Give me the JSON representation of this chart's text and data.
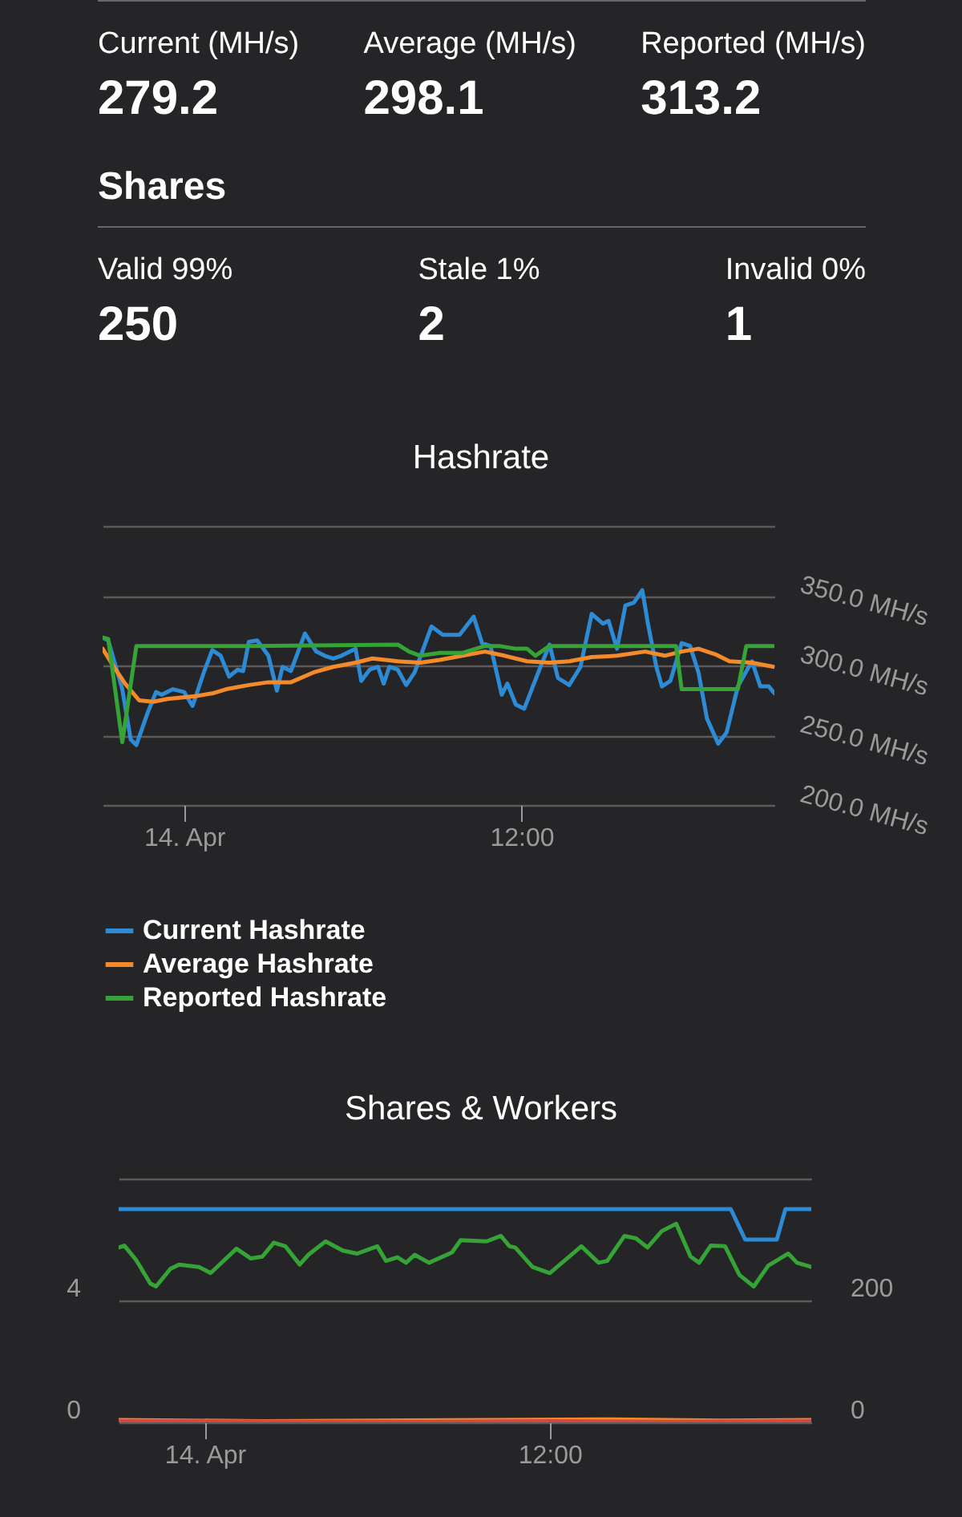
{
  "chart_data": [
    {
      "type": "other",
      "annotations": [
        "Current (MH/s)",
        "279.2",
        "Average (MH/s)",
        "298.1",
        "Reported (MH/s)",
        "313.2",
        "Shares",
        "Valid 99%",
        "250",
        "Stale 1%",
        "2",
        "Invalid 0%",
        "1"
      ]
    },
    {
      "type": "line",
      "title": "Hashrate",
      "xlim": [
        "--04-13T21:06",
        "--04-14T21:00"
      ],
      "xticks": [
        {
          "value": "--04-14",
          "label": "14. Apr"
        },
        {
          "value": "--04-14T12:00",
          "label": "12:00"
        }
      ],
      "ylim": [
        200,
        400
      ],
      "yticks": [
        {
          "value": 200,
          "label": "200.0 MH/s"
        },
        {
          "value": 250,
          "label": "250.0 MH/s"
        },
        {
          "value": 300,
          "label": "300.0 MH/s"
        },
        {
          "value": 350,
          "label": "350.0 MH/s"
        },
        {
          "value": 400,
          "label": null
        }
      ],
      "grid": "y",
      "legend": "bottom",
      "series": [
        {
          "name": "Current Hashrate",
          "color": "#2d8ad4",
          "x": [
            "--04-13T21:06",
            "--04-13T21:18",
            "--04-13T21:48",
            "--04-13T22:06",
            "--04-13T22:18",
            "--04-13T22:42",
            "--04-13T23:00",
            "--04-13T23:12",
            "--04-13T23:36",
            "--04-14T00:00",
            "--04-14T00:18",
            "--04-14T00:42",
            "--04-14T01:00",
            "--04-14T01:18",
            "--04-14T01:36",
            "--04-14T01:54",
            "--04-14T02:06",
            "--04-14T02:18",
            "--04-14T02:36",
            "--04-14T03:00",
            "--04-14T03:18",
            "--04-14T03:30",
            "--04-14T03:48",
            "--04-14T04:18",
            "--04-14T04:42",
            "--04-14T05:00",
            "--04-14T05:18",
            "--04-14T05:36",
            "--04-14T05:54",
            "--04-14T06:06",
            "--04-14T06:18",
            "--04-14T06:36",
            "--04-14T06:54",
            "--04-14T07:06",
            "--04-14T07:18",
            "--04-14T07:36",
            "--04-14T07:54",
            "--04-14T08:12",
            "--04-14T08:48",
            "--04-14T09:12",
            "--04-14T09:48",
            "--04-14T10:18",
            "--04-14T10:36",
            "--04-14T10:54",
            "--04-14T11:18",
            "--04-14T11:30",
            "--04-14T11:48",
            "--04-14T12:06",
            "--04-14T12:36",
            "--04-14T13:00",
            "--04-14T13:18",
            "--04-14T13:42",
            "--04-14T14:06",
            "--04-14T14:30",
            "--04-14T14:54",
            "--04-14T15:06",
            "--04-14T15:24",
            "--04-14T15:42",
            "--04-14T16:00",
            "--04-14T16:18",
            "--04-14T16:30",
            "--04-14T16:48",
            "--04-14T17:00",
            "--04-14T17:18",
            "--04-14T17:42",
            "--04-14T18:00",
            "--04-14T18:18",
            "--04-14T18:36",
            "--04-14T19:00",
            "--04-14T19:18",
            "--04-14T19:42",
            "--04-14T20:12",
            "--04-14T20:30",
            "--04-14T20:48",
            "--04-14T21:00"
          ],
          "values": [
            320,
            318,
            283,
            247,
            243,
            266,
            281,
            279,
            283,
            281,
            271,
            295,
            311,
            307,
            292,
            297,
            296,
            317,
            318,
            307,
            282,
            299,
            296,
            323,
            310,
            307,
            305,
            307,
            310,
            312,
            289,
            297,
            299,
            287,
            299,
            297,
            286,
            295,
            328,
            322,
            322,
            335,
            316,
            314,
            279,
            287,
            272,
            269,
            295,
            315,
            291,
            286,
            299,
            337,
            330,
            332,
            312,
            343,
            345,
            354,
            330,
            299,
            285,
            289,
            316,
            314,
            295,
            262,
            244,
            252,
            285,
            303,
            285,
            285,
            280
          ]
        },
        {
          "name": "Average Hashrate",
          "color": "#f48a2a",
          "x": [
            "--04-13T21:06",
            "--04-13T21:30",
            "--04-13T21:54",
            "--04-13T22:24",
            "--04-13T22:54",
            "--04-13T23:24",
            "--04-14T00:24",
            "--04-14T01:00",
            "--04-14T01:30",
            "--04-14T02:18",
            "--04-14T03:00",
            "--04-14T03:48",
            "--04-14T04:36",
            "--04-14T05:18",
            "--04-14T06:06",
            "--04-14T06:42",
            "--04-14T07:36",
            "--04-14T08:24",
            "--04-14T09:06",
            "--04-14T09:54",
            "--04-14T10:42",
            "--04-14T11:24",
            "--04-14T12:12",
            "--04-14T13:00",
            "--04-14T13:42",
            "--04-14T14:30",
            "--04-14T15:24",
            "--04-14T16:24",
            "--04-14T17:06",
            "--04-14T17:42",
            "--04-14T18:18",
            "--04-14T18:54",
            "--04-14T19:24",
            "--04-14T20:12",
            "--04-14T21:00"
          ],
          "values": [
            312,
            299,
            287,
            275,
            274,
            276,
            278,
            280,
            283,
            286,
            288,
            288,
            295,
            299,
            302,
            305,
            303,
            302,
            304,
            307,
            310,
            307,
            303,
            302,
            303,
            306,
            307,
            310,
            307,
            310,
            312,
            308,
            303,
            302,
            299
          ]
        },
        {
          "name": "Reported Hashrate",
          "color": "#35a335",
          "x": [
            "--04-13T21:06",
            "--04-13T21:18",
            "--04-13T21:48",
            "--04-13T22:18",
            "--04-13T23:24",
            "--04-14T02:18",
            "--04-14T07:36",
            "--04-14T08:00",
            "--04-14T08:24",
            "--04-14T09:06",
            "--04-14T09:54",
            "--04-14T10:42",
            "--04-14T11:12",
            "--04-14T11:48",
            "--04-14T12:12",
            "--04-14T12:30",
            "--04-14T13:00",
            "--04-14T13:42",
            "--04-14T15:36",
            "--04-14T17:30",
            "--04-14T17:42",
            "--04-14T19:42",
            "--04-14T20:00",
            "--04-14T21:00"
          ],
          "values": [
            320,
            319,
            245,
            314,
            314,
            314,
            315,
            310,
            307,
            309,
            309,
            314,
            314,
            312,
            312,
            307,
            314,
            314,
            314,
            314,
            283,
            283,
            314,
            314
          ]
        }
      ]
    },
    {
      "type": "line",
      "title": "Shares & Workers",
      "xlim": [
        "--04-13T21:00",
        "--04-14T21:06"
      ],
      "xticks": [
        {
          "value": "--04-14",
          "label": "14. Apr"
        },
        {
          "value": "--04-14T12:00",
          "label": "12:00"
        }
      ],
      "ylim": [
        0,
        8
      ],
      "yticks": [
        0,
        4,
        {
          "value": 8,
          "label": null
        }
      ],
      "y2lim": [
        0,
        400
      ],
      "y2ticks": [
        0,
        200
      ],
      "grid": "y",
      "series": [
        {
          "color": "#2d8ad4",
          "x": [
            "--04-13T21:00",
            "--04-14T18:18",
            "--04-14T18:48",
            "--04-14T19:54",
            "--04-14T20:12",
            "--04-14T21:06"
          ],
          "values": [
            7,
            7,
            6,
            6,
            7,
            7
          ]
        },
        {
          "color": "#35a335",
          "axis": "y2",
          "x": [
            "--04-13T21:00",
            "--04-13T21:12",
            "--04-13T21:36",
            "--04-13T22:06",
            "--04-13T22:18",
            "--04-13T22:48",
            "--04-13T23:06",
            "--04-13T23:48",
            "--04-14T00:12",
            "--04-14T01:06",
            "--04-14T01:36",
            "--04-14T02:00",
            "--04-14T02:24",
            "--04-14T02:48",
            "--04-14T03:18",
            "--04-14T03:36",
            "--04-14T04:12",
            "--04-14T04:48",
            "--04-14T05:18",
            "--04-14T06:00",
            "--04-14T06:18",
            "--04-14T06:42",
            "--04-14T07:00",
            "--04-14T07:18",
            "--04-14T07:48",
            "--04-14T08:36",
            "--04-14T08:54",
            "--04-14T09:48",
            "--04-14T10:18",
            "--04-14T10:36",
            "--04-14T10:48",
            "--04-14T11:24",
            "--04-14T12:00",
            "--04-14T13:06",
            "--04-14T13:42",
            "--04-14T14:00",
            "--04-14T14:36",
            "--04-14T15:00",
            "--04-14T15:24",
            "--04-14T15:54",
            "--04-14T16:24",
            "--04-14T16:54",
            "--04-14T17:12",
            "--04-14T17:36",
            "--04-14T18:06",
            "--04-14T18:36",
            "--04-14T19:06",
            "--04-14T19:36",
            "--04-14T20:18",
            "--04-14T20:36",
            "--04-14T21:06"
          ],
          "values": [
            287,
            290,
            267,
            228,
            223,
            252,
            259,
            255,
            245,
            285,
            269,
            272,
            295,
            289,
            259,
            275,
            297,
            282,
            277,
            289,
            265,
            271,
            262,
            275,
            262,
            279,
            299,
            297,
            306,
            289,
            287,
            255,
            245,
            289,
            262,
            265,
            306,
            302,
            287,
            314,
            326,
            272,
            262,
            290,
            289,
            242,
            223,
            257,
            277,
            262,
            255
          ]
        },
        {
          "color": "#f48a2a",
          "axis": "y2",
          "x": [
            "--04-13T21:00",
            "--04-14T02:00",
            "--04-14T06:00",
            "--04-14T10:00",
            "--04-14T14:00",
            "--04-14T18:00",
            "--04-14T21:06"
          ],
          "values": [
            4,
            2,
            3,
            4,
            5,
            3,
            4
          ]
        },
        {
          "color": "#d5483d",
          "axis": "y2",
          "x": [
            "--04-13T21:00",
            "--04-14T04:00",
            "--04-14T08:00",
            "--04-14T12:00",
            "--04-14T16:00",
            "--04-14T21:06"
          ],
          "values": [
            2,
            1,
            1,
            2,
            1,
            2
          ]
        }
      ]
    }
  ]
}
